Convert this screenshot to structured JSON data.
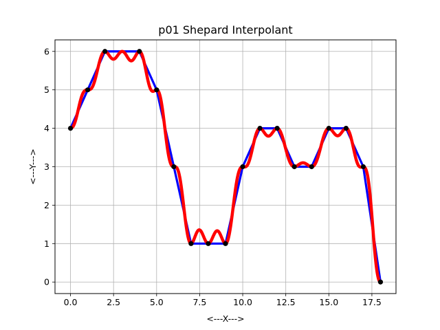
{
  "chart_data": {
    "type": "line",
    "title": "p01 Shepard Interpolant",
    "xlabel": "<---X--->",
    "ylabel": "<---Y--->",
    "xlim": [
      -0.9,
      18.9
    ],
    "ylim": [
      -0.3,
      6.3
    ],
    "grid": true,
    "xticks": [
      0,
      2.5,
      5,
      7.5,
      10,
      12.5,
      15,
      17.5
    ],
    "xtick_labels": [
      "0.0",
      "2.5",
      "5.0",
      "7.5",
      "10.0",
      "12.5",
      "15.0",
      "17.5"
    ],
    "yticks": [
      0,
      1,
      2,
      3,
      4,
      5,
      6
    ],
    "ytick_labels": [
      "0",
      "1",
      "2",
      "3",
      "4",
      "5",
      "6"
    ],
    "colors": {
      "data_line": "#0000ff",
      "interpolant": "#ff0000",
      "points": "#000000",
      "grid": "#b0b0b0"
    },
    "series": [
      {
        "kind": "data-line",
        "x": [
          0,
          1,
          2,
          3,
          4,
          5,
          6,
          7,
          8,
          9,
          10,
          11,
          12,
          13,
          14,
          15,
          16,
          17,
          18
        ],
        "y": [
          4,
          5,
          6,
          6,
          6,
          5,
          3,
          1,
          1,
          1,
          3,
          4,
          4,
          3,
          3,
          4,
          4,
          3,
          0
        ]
      },
      {
        "kind": "shepard-interpolant",
        "x": [
          0,
          1,
          2,
          3,
          4,
          5,
          6,
          7,
          8,
          9,
          10,
          11,
          12,
          13,
          14,
          15,
          16,
          17,
          18
        ],
        "y": [
          4,
          5,
          6,
          6,
          6,
          5,
          3,
          1,
          1,
          1,
          3,
          4,
          4,
          3,
          3,
          4,
          4,
          3,
          0
        ],
        "power": 2
      },
      {
        "kind": "data-points",
        "x": [
          0,
          1,
          2,
          4,
          5,
          6,
          7,
          8,
          9,
          10,
          11,
          12,
          13,
          14,
          15,
          16,
          17,
          18
        ],
        "y": [
          4,
          5,
          6,
          6,
          5,
          3,
          1,
          1,
          1,
          3,
          4,
          4,
          3,
          3,
          4,
          4,
          3,
          0
        ]
      }
    ]
  }
}
